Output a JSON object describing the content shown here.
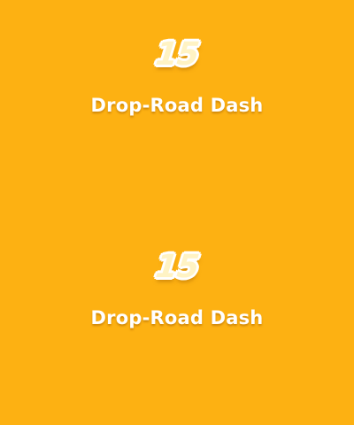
{
  "background_color": "#FDB112",
  "levels": [
    {
      "number": "15",
      "name": "Drop-Road Dash"
    },
    {
      "number": "15",
      "name": "Drop-Road Dash"
    }
  ]
}
